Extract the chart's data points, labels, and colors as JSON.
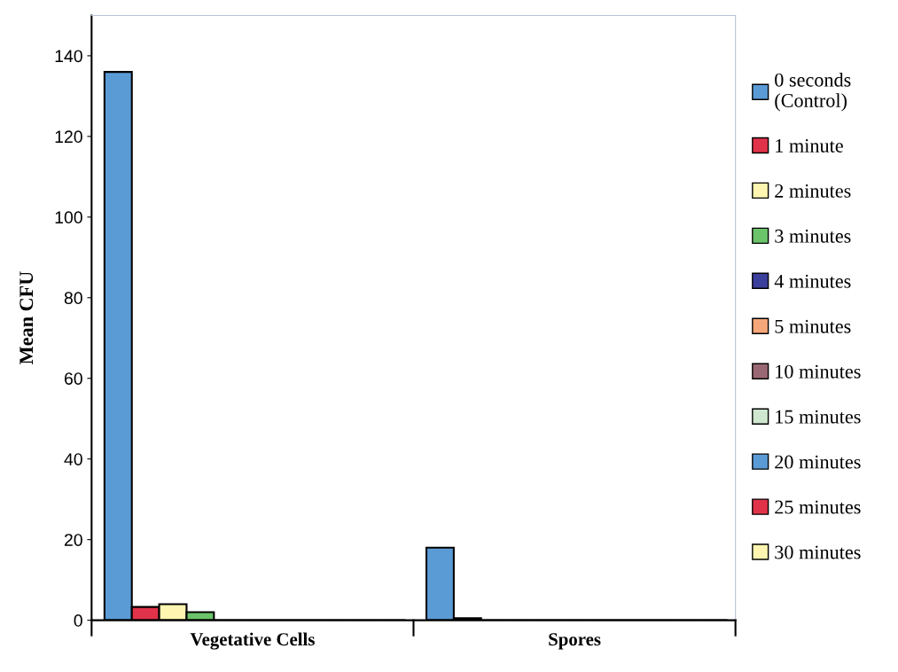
{
  "chart_data": {
    "type": "bar",
    "ylabel": "Mean CFU",
    "categories": [
      "Vegetative Cells",
      "Spores"
    ],
    "series": [
      {
        "name": "0 seconds\n(Control)",
        "color": "#5b9bd5",
        "values": [
          136,
          18
        ]
      },
      {
        "name": "1 minute",
        "color": "#e0334a",
        "values": [
          3.3,
          0.5
        ]
      },
      {
        "name": "2 minutes",
        "color": "#fdf5b0",
        "values": [
          4,
          0
        ]
      },
      {
        "name": "3 minutes",
        "color": "#6cc46a",
        "values": [
          2,
          0
        ]
      },
      {
        "name": "4 minutes",
        "color": "#3a3f9c",
        "values": [
          0,
          0
        ]
      },
      {
        "name": "5 minutes",
        "color": "#f6a77a",
        "values": [
          0,
          0
        ]
      },
      {
        "name": "10 minutes",
        "color": "#9a6874",
        "values": [
          0,
          0
        ]
      },
      {
        "name": "15 minutes",
        "color": "#cfe6cf",
        "values": [
          0,
          0
        ]
      },
      {
        "name": "20 minutes",
        "color": "#5b9bd5",
        "values": [
          0,
          0
        ]
      },
      {
        "name": "25 minutes",
        "color": "#e0334a",
        "values": [
          0,
          0
        ]
      },
      {
        "name": "30 minutes",
        "color": "#fdf5b0",
        "values": [
          0,
          0
        ]
      }
    ],
    "ylim": [
      0,
      150
    ],
    "yticks": [
      0,
      20,
      40,
      60,
      80,
      100,
      120,
      140
    ],
    "grid": false,
    "legend": "right"
  }
}
